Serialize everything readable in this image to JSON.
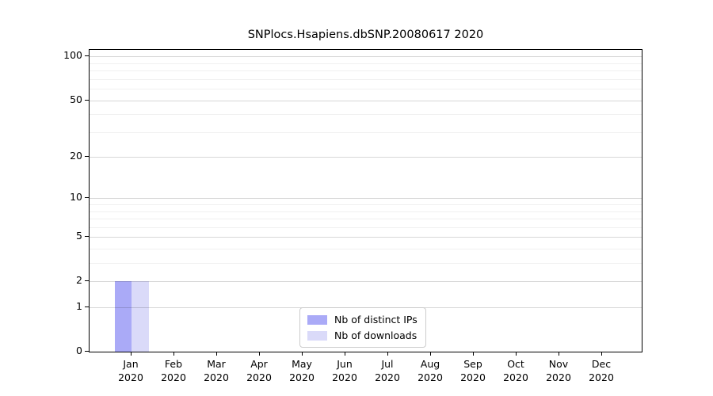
{
  "title": "SNPlocs.Hsapiens.dbSNP.20080617 2020",
  "colors": {
    "distinct_ips_bar": "#aaaaf7",
    "downloads_bar": "#dadaf9",
    "axis": "#000000",
    "grid_major": "#d8d8d8",
    "grid_minor": "#efefef",
    "legend_border": "#cccccc"
  },
  "legend": {
    "items": [
      {
        "label": "Nb of distinct IPs",
        "color": "#aaaaf7"
      },
      {
        "label": "Nb of downloads",
        "color": "#dadaf9"
      }
    ]
  },
  "chart_data": {
    "type": "bar",
    "title": "SNPlocs.Hsapiens.dbSNP.20080617 2020",
    "xlabel": "",
    "ylabel": "",
    "categories": [
      {
        "label": "Jan",
        "sublabel": "2020"
      },
      {
        "label": "Feb",
        "sublabel": "2020"
      },
      {
        "label": "Mar",
        "sublabel": "2020"
      },
      {
        "label": "Apr",
        "sublabel": "2020"
      },
      {
        "label": "May",
        "sublabel": "2020"
      },
      {
        "label": "Jun",
        "sublabel": "2020"
      },
      {
        "label": "Jul",
        "sublabel": "2020"
      },
      {
        "label": "Aug",
        "sublabel": "2020"
      },
      {
        "label": "Sep",
        "sublabel": "2020"
      },
      {
        "label": "Oct",
        "sublabel": "2020"
      },
      {
        "label": "Nov",
        "sublabel": "2020"
      },
      {
        "label": "Dec",
        "sublabel": "2020"
      }
    ],
    "series": [
      {
        "name": "Nb of distinct IPs",
        "color": "#aaaaf7",
        "values": [
          2,
          0,
          0,
          0,
          0,
          0,
          0,
          0,
          0,
          0,
          0,
          0
        ]
      },
      {
        "name": "Nb of downloads",
        "color": "#dadaf9",
        "values": [
          2,
          0,
          0,
          0,
          0,
          0,
          0,
          0,
          0,
          0,
          0,
          0
        ]
      }
    ],
    "yscale": "log1p",
    "ylim": [
      0,
      111
    ],
    "yticks": [
      0,
      1,
      2,
      5,
      10,
      20,
      50,
      100
    ],
    "yticks_minor": [
      3,
      4,
      6,
      7,
      8,
      9,
      30,
      40,
      60,
      70,
      80,
      90
    ],
    "grid": "horizontal",
    "legend_position": "lower center"
  }
}
